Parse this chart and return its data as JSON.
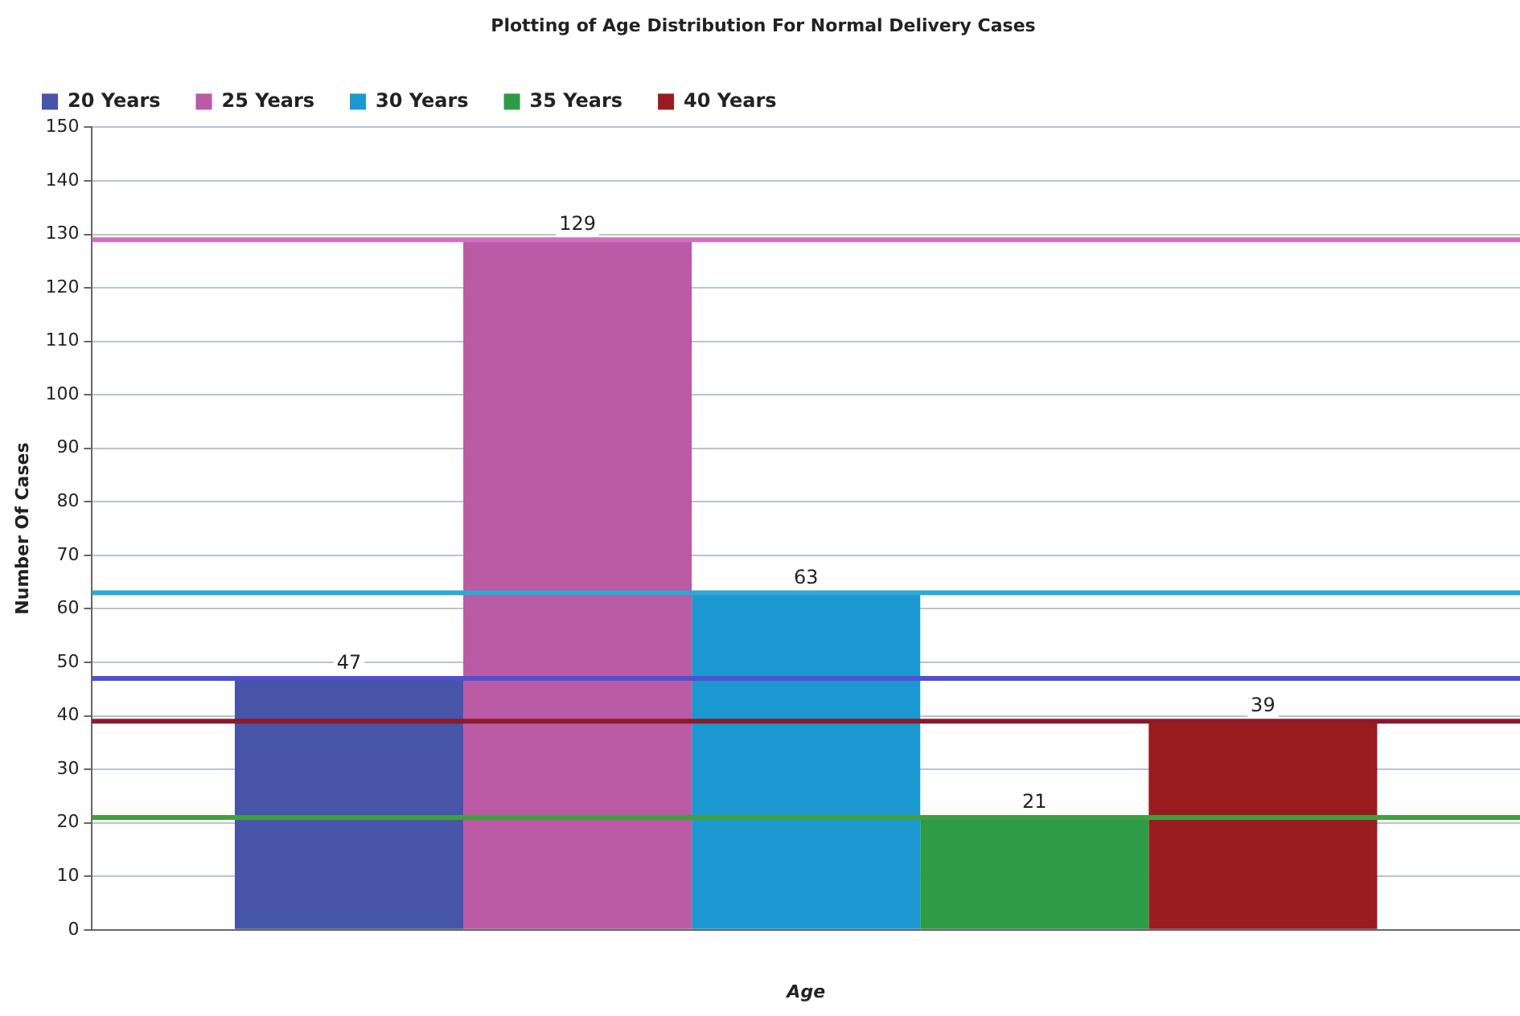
{
  "chart_data": {
    "type": "bar",
    "title": "Plotting of Age Distribution For Normal Delivery Cases",
    "xlabel": "Age",
    "ylabel": "Number Of Cases",
    "categories": [
      null
    ],
    "series": [
      {
        "name": "20 Years",
        "color": "#4655a8",
        "values": [
          47
        ]
      },
      {
        "name": "25 Years",
        "color": "#bb5aa5",
        "values": [
          129
        ]
      },
      {
        "name": "30 Years",
        "color": "#1b98cf",
        "values": [
          63
        ]
      },
      {
        "name": "35 Years",
        "color": "#2e9b46",
        "values": [
          21
        ]
      },
      {
        "name": "40 Years",
        "color": "#9a1c1e",
        "values": [
          39
        ]
      }
    ],
    "ref_lines": [
      {
        "axis": "y",
        "value": 129,
        "color": "#d070c0"
      },
      {
        "axis": "y",
        "value": 63,
        "color": "#30a8d0"
      },
      {
        "axis": "y",
        "value": 47,
        "color": "#5050d0"
      },
      {
        "axis": "y",
        "value": 39,
        "color": "#8b1a2a"
      },
      {
        "axis": "y",
        "value": 21,
        "color": "#40a040"
      }
    ],
    "ylim": [
      0,
      150
    ],
    "yticks": [
      0,
      10,
      20,
      30,
      40,
      50,
      60,
      70,
      80,
      90,
      100,
      110,
      120,
      130,
      140,
      150
    ],
    "grid": "y",
    "legend": "top left",
    "data_labels": true
  }
}
